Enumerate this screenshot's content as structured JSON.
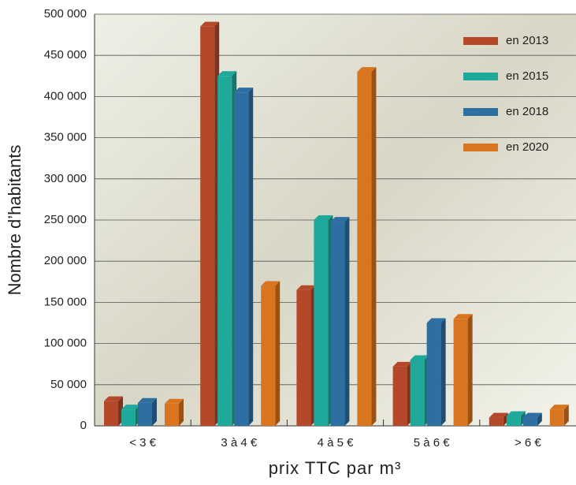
{
  "chart_data": {
    "type": "bar",
    "x_label": "prix TTC par m³",
    "y_label": "Nombre d’habitants",
    "categories": [
      "< 3 €",
      "3 à 4 €",
      "4 à 5 €",
      "5 à 6 €",
      "> 6 €"
    ],
    "series": [
      {
        "name": "en 2013",
        "color": "#b5482a",
        "values": [
          30000,
          485000,
          165000,
          72000,
          10000
        ]
      },
      {
        "name": "en 2015",
        "color": "#1fa99a",
        "values": [
          20000,
          425000,
          250000,
          80000,
          12000
        ]
      },
      {
        "name": "en 2018",
        "color": "#2c6fa0",
        "values": [
          28000,
          405000,
          248000,
          125000,
          10000
        ]
      },
      {
        "name": "en 2020",
        "color": "#d9751f",
        "values": [
          27000,
          170000,
          430000,
          130000,
          20000
        ]
      }
    ],
    "ylim": [
      0,
      500000
    ],
    "yticks": [
      0,
      {
        "value": 50000,
        "label": "50 000"
      },
      {
        "value": 100000,
        "label": "100 000"
      },
      {
        "value": 150000,
        "label": "150 000"
      },
      {
        "value": 200000,
        "label": "200 000"
      },
      {
        "value": 250000,
        "label": "250 000"
      },
      {
        "value": 300000,
        "label": "300 000"
      },
      {
        "value": 350000,
        "label": "350 000"
      },
      {
        "value": 400000,
        "label": "400 000"
      },
      {
        "value": 450000,
        "label": "450 000"
      },
      {
        "value": 500000,
        "label": "500 000"
      }
    ],
    "grid": true,
    "legend": "top-right"
  }
}
